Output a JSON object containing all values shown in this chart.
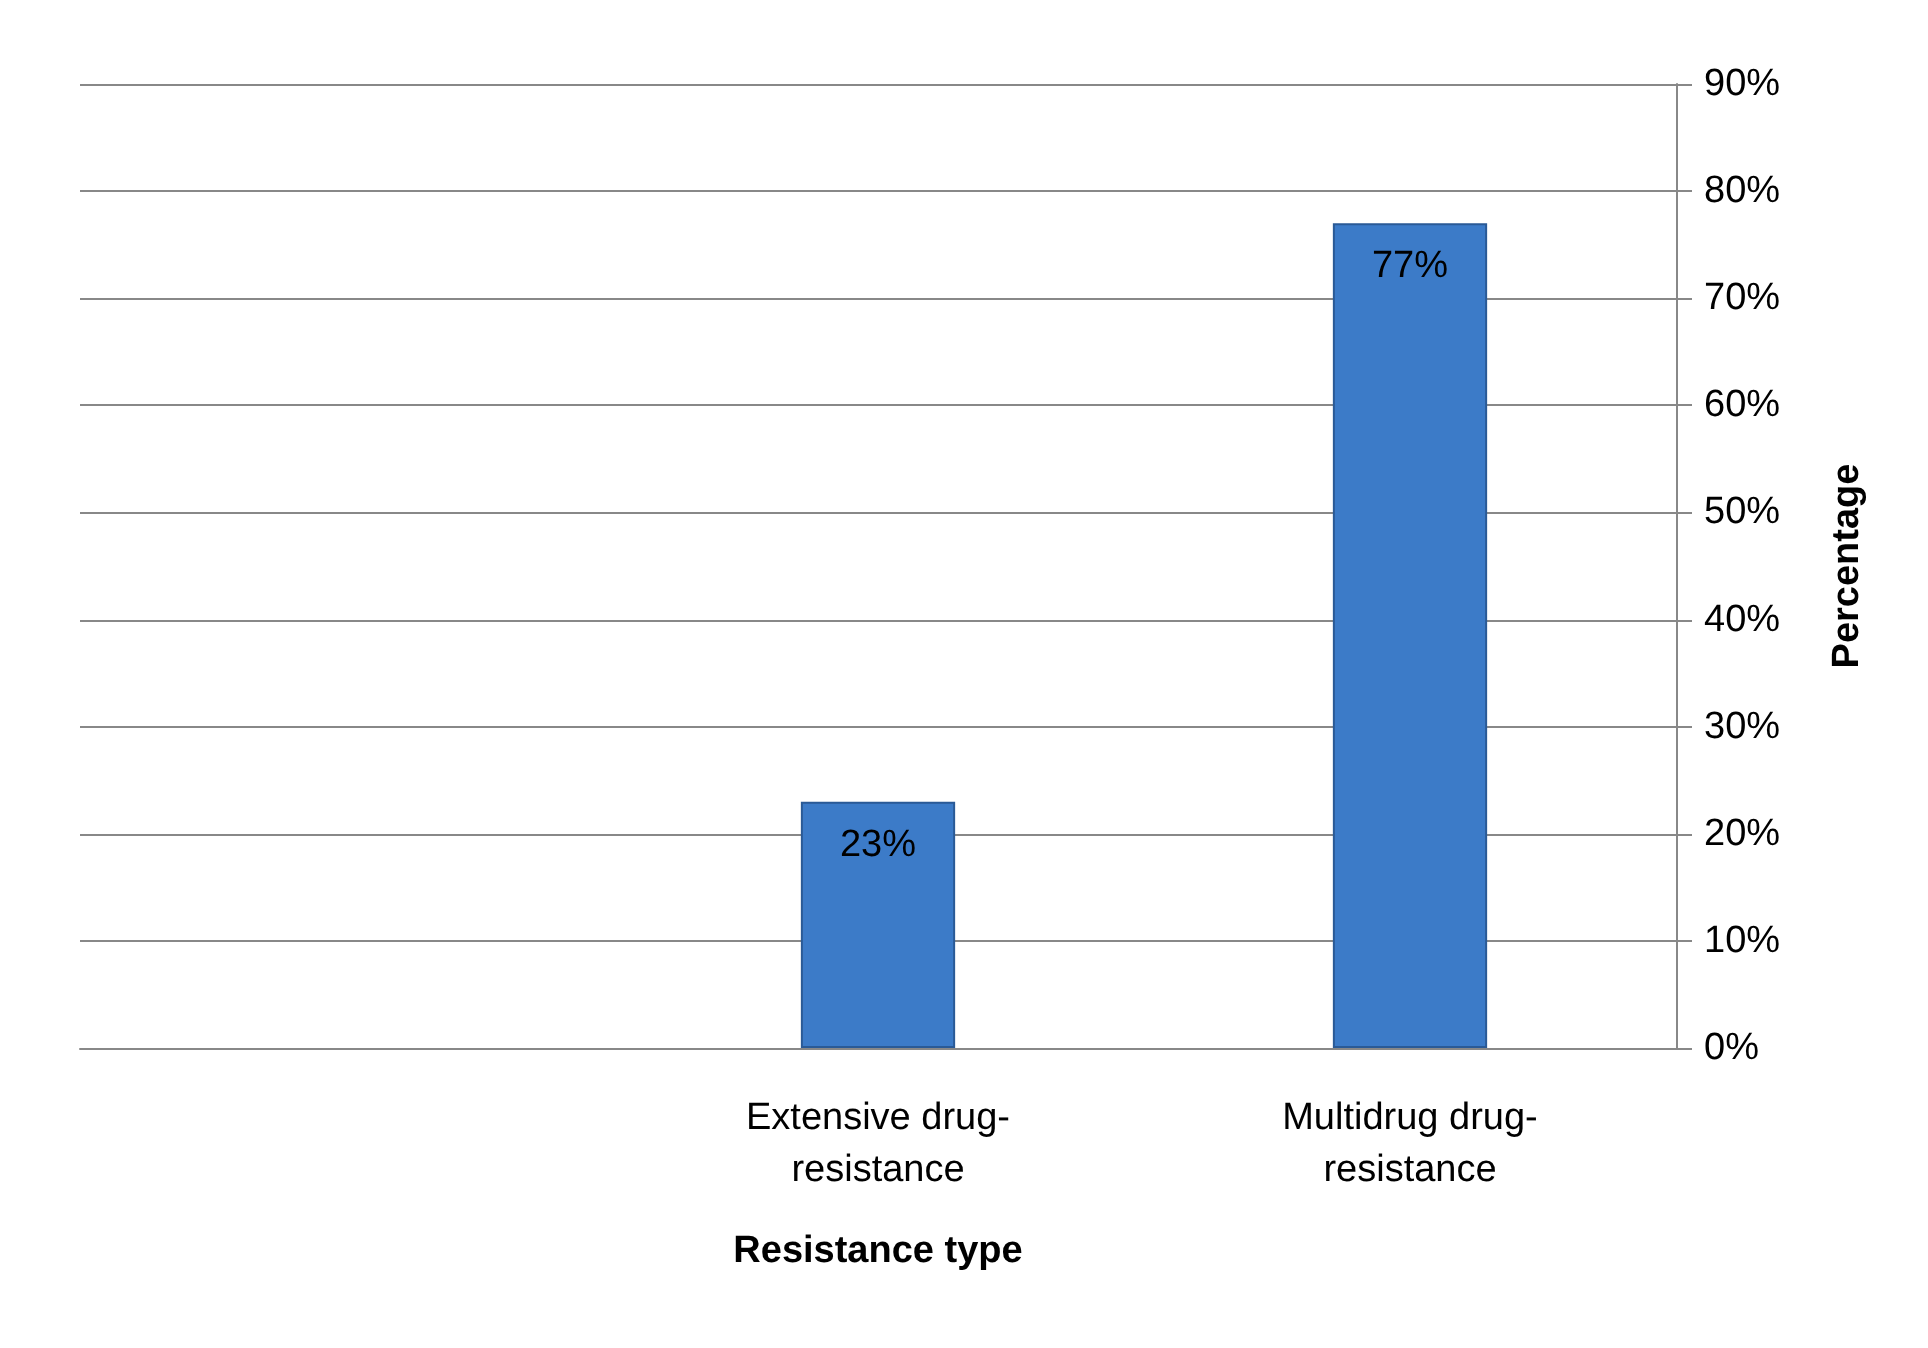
{
  "chart_data": {
    "type": "bar",
    "xlabel": "Resistance type",
    "ylabel": "Percentage",
    "categories": [
      null,
      "Extensive drug-resistance",
      "Multidrug drug-resistance"
    ],
    "values": [
      null,
      23,
      77
    ],
    "color": "#3c7bc8",
    "value_labels": [
      null,
      "23%",
      "77%"
    ],
    "ylim": [
      0,
      90
    ],
    "yticks": [
      {
        "value": 0,
        "label": "0%"
      },
      {
        "value": 10,
        "label": "10%"
      },
      {
        "value": 20,
        "label": "20%"
      },
      {
        "value": 30,
        "label": "30%"
      },
      {
        "value": 40,
        "label": "40%"
      },
      {
        "value": 50,
        "label": "50%"
      },
      {
        "value": 60,
        "label": "60%"
      },
      {
        "value": 70,
        "label": "70%"
      },
      {
        "value": 80,
        "label": "80%"
      },
      {
        "value": 90,
        "label": "90%"
      }
    ],
    "grid": "y"
  }
}
